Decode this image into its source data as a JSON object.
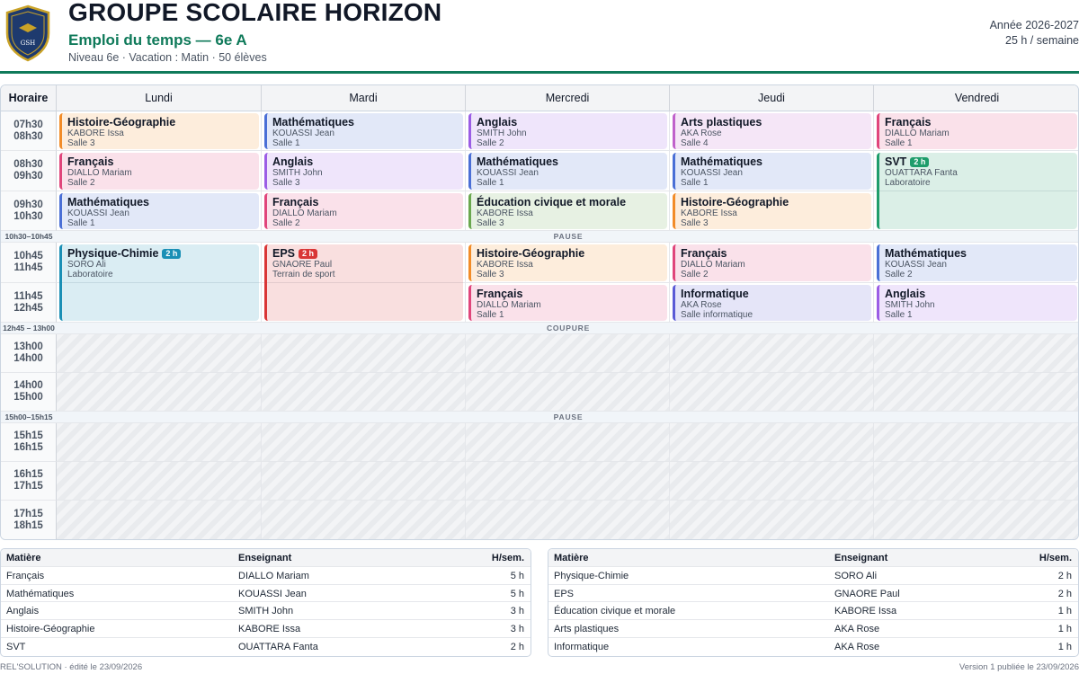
{
  "header": {
    "logo_text": "GSH",
    "school_name": "GROUPE SCOLAIRE HORIZON",
    "subtitle": "Emploi du temps — 6e A",
    "meta": "Niveau 6e · Vacation : Matin · 50 élèves",
    "year": "Année 2026-2027",
    "weekly_hours": "25 h / semaine"
  },
  "colors": {
    "brand": "#0f7a5a",
    "hist_geo": "#f28c28",
    "francais": "#e0457b",
    "maths": "#4a6fd6",
    "anglais": "#9b5de5",
    "arts": "#c061cb",
    "svt": "#1f9d6b",
    "physique": "#1a8fb5",
    "eps": "#d93636",
    "ecm": "#6aa84f",
    "informatique": "#5b5bd6"
  },
  "timetable": {
    "corner_label": "Horaire",
    "days": [
      "Lundi",
      "Mardi",
      "Mercredi",
      "Jeudi",
      "Vendredi"
    ],
    "slots": [
      {
        "start": "07h30",
        "end": "08h30"
      },
      {
        "start": "08h30",
        "end": "09h30"
      },
      {
        "start": "09h30",
        "end": "10h30"
      },
      {
        "start": "10h45",
        "end": "11h45"
      },
      {
        "start": "11h45",
        "end": "12h45"
      },
      {
        "start": "13h00",
        "end": "14h00"
      },
      {
        "start": "14h00",
        "end": "15h00"
      },
      {
        "start": "15h15",
        "end": "16h15"
      },
      {
        "start": "16h15",
        "end": "17h15"
      },
      {
        "start": "17h15",
        "end": "18h15"
      }
    ],
    "breaks": [
      {
        "time": "10h30–10h45",
        "label": "PAUSE"
      },
      {
        "time": "12h45 – 13h00",
        "label": "COUPURE"
      },
      {
        "time": "15h00–15h15",
        "label": "PAUSE"
      }
    ],
    "lessons": [
      {
        "day": 0,
        "slot": 0,
        "span": 1,
        "subject": "Histoire-Géographie",
        "teacher": "KABORE Issa",
        "room": "Salle 3",
        "color": "hist_geo",
        "tag": ""
      },
      {
        "day": 0,
        "slot": 1,
        "span": 1,
        "subject": "Français",
        "teacher": "DIALLO Mariam",
        "room": "Salle 2",
        "color": "francais",
        "tag": ""
      },
      {
        "day": 0,
        "slot": 2,
        "span": 1,
        "subject": "Mathématiques",
        "teacher": "KOUASSI Jean",
        "room": "Salle 1",
        "color": "maths",
        "tag": ""
      },
      {
        "day": 0,
        "slot": 3,
        "span": 2,
        "subject": "Physique-Chimie",
        "teacher": "SORO Ali",
        "room": "Laboratoire",
        "color": "physique",
        "tag": "2 h"
      },
      {
        "day": 1,
        "slot": 0,
        "span": 1,
        "subject": "Mathématiques",
        "teacher": "KOUASSI Jean",
        "room": "Salle 1",
        "color": "maths",
        "tag": ""
      },
      {
        "day": 1,
        "slot": 1,
        "span": 1,
        "subject": "Anglais",
        "teacher": "SMITH John",
        "room": "Salle 3",
        "color": "anglais",
        "tag": ""
      },
      {
        "day": 1,
        "slot": 2,
        "span": 1,
        "subject": "Français",
        "teacher": "DIALLO Mariam",
        "room": "Salle 2",
        "color": "francais",
        "tag": ""
      },
      {
        "day": 1,
        "slot": 3,
        "span": 2,
        "subject": "EPS",
        "teacher": "GNAORE Paul",
        "room": "Terrain de sport",
        "color": "eps",
        "tag": "2 h"
      },
      {
        "day": 2,
        "slot": 0,
        "span": 1,
        "subject": "Anglais",
        "teacher": "SMITH John",
        "room": "Salle 2",
        "color": "anglais",
        "tag": ""
      },
      {
        "day": 2,
        "slot": 1,
        "span": 1,
        "subject": "Mathématiques",
        "teacher": "KOUASSI Jean",
        "room": "Salle 1",
        "color": "maths",
        "tag": ""
      },
      {
        "day": 2,
        "slot": 2,
        "span": 1,
        "subject": "Éducation civique et morale",
        "teacher": "KABORE Issa",
        "room": "Salle 3",
        "color": "ecm",
        "tag": ""
      },
      {
        "day": 2,
        "slot": 3,
        "span": 1,
        "subject": "Histoire-Géographie",
        "teacher": "KABORE Issa",
        "room": "Salle 3",
        "color": "hist_geo",
        "tag": ""
      },
      {
        "day": 2,
        "slot": 4,
        "span": 1,
        "subject": "Français",
        "teacher": "DIALLO Mariam",
        "room": "Salle 1",
        "color": "francais",
        "tag": ""
      },
      {
        "day": 3,
        "slot": 0,
        "span": 1,
        "subject": "Arts plastiques",
        "teacher": "AKA Rose",
        "room": "Salle 4",
        "color": "arts",
        "tag": ""
      },
      {
        "day": 3,
        "slot": 1,
        "span": 1,
        "subject": "Mathématiques",
        "teacher": "KOUASSI Jean",
        "room": "Salle 1",
        "color": "maths",
        "tag": ""
      },
      {
        "day": 3,
        "slot": 2,
        "span": 1,
        "subject": "Histoire-Géographie",
        "teacher": "KABORE Issa",
        "room": "Salle 3",
        "color": "hist_geo",
        "tag": ""
      },
      {
        "day": 3,
        "slot": 3,
        "span": 1,
        "subject": "Français",
        "teacher": "DIALLO Mariam",
        "room": "Salle 2",
        "color": "francais",
        "tag": ""
      },
      {
        "day": 3,
        "slot": 4,
        "span": 1,
        "subject": "Informatique",
        "teacher": "AKA Rose",
        "room": "Salle informatique",
        "color": "informatique",
        "tag": ""
      },
      {
        "day": 4,
        "slot": 0,
        "span": 1,
        "subject": "Français",
        "teacher": "DIALLO Mariam",
        "room": "Salle 1",
        "color": "francais",
        "tag": ""
      },
      {
        "day": 4,
        "slot": 1,
        "span": 2,
        "subject": "SVT",
        "teacher": "OUATTARA Fanta",
        "room": "Laboratoire",
        "color": "svt",
        "tag": "2 h"
      },
      {
        "day": 4,
        "slot": 3,
        "span": 1,
        "subject": "Mathématiques",
        "teacher": "KOUASSI Jean",
        "room": "Salle 2",
        "color": "maths",
        "tag": ""
      },
      {
        "day": 4,
        "slot": 4,
        "span": 1,
        "subject": "Anglais",
        "teacher": "SMITH John",
        "room": "Salle 1",
        "color": "anglais",
        "tag": ""
      }
    ]
  },
  "summary": {
    "headers": {
      "subject": "Matière",
      "teacher": "Enseignant",
      "hours": "H/sem."
    },
    "left": [
      {
        "subject": "Français",
        "teacher": "DIALLO Mariam",
        "hours": "5 h"
      },
      {
        "subject": "Mathématiques",
        "teacher": "KOUASSI Jean",
        "hours": "5 h"
      },
      {
        "subject": "Anglais",
        "teacher": "SMITH John",
        "hours": "3 h"
      },
      {
        "subject": "Histoire-Géographie",
        "teacher": "KABORE Issa",
        "hours": "3 h"
      },
      {
        "subject": "SVT",
        "teacher": "OUATTARA Fanta",
        "hours": "2 h"
      }
    ],
    "right": [
      {
        "subject": "Physique-Chimie",
        "teacher": "SORO Ali",
        "hours": "2 h"
      },
      {
        "subject": "EPS",
        "teacher": "GNAORE Paul",
        "hours": "2 h"
      },
      {
        "subject": "Éducation civique et morale",
        "teacher": "KABORE Issa",
        "hours": "1 h"
      },
      {
        "subject": "Arts plastiques",
        "teacher": "AKA Rose",
        "hours": "1 h"
      },
      {
        "subject": "Informatique",
        "teacher": "AKA Rose",
        "hours": "1 h"
      }
    ]
  },
  "footer": {
    "left": "REL'SOLUTION · édité le 23/09/2026",
    "right": "Version 1 publiée le 23/09/2026"
  }
}
